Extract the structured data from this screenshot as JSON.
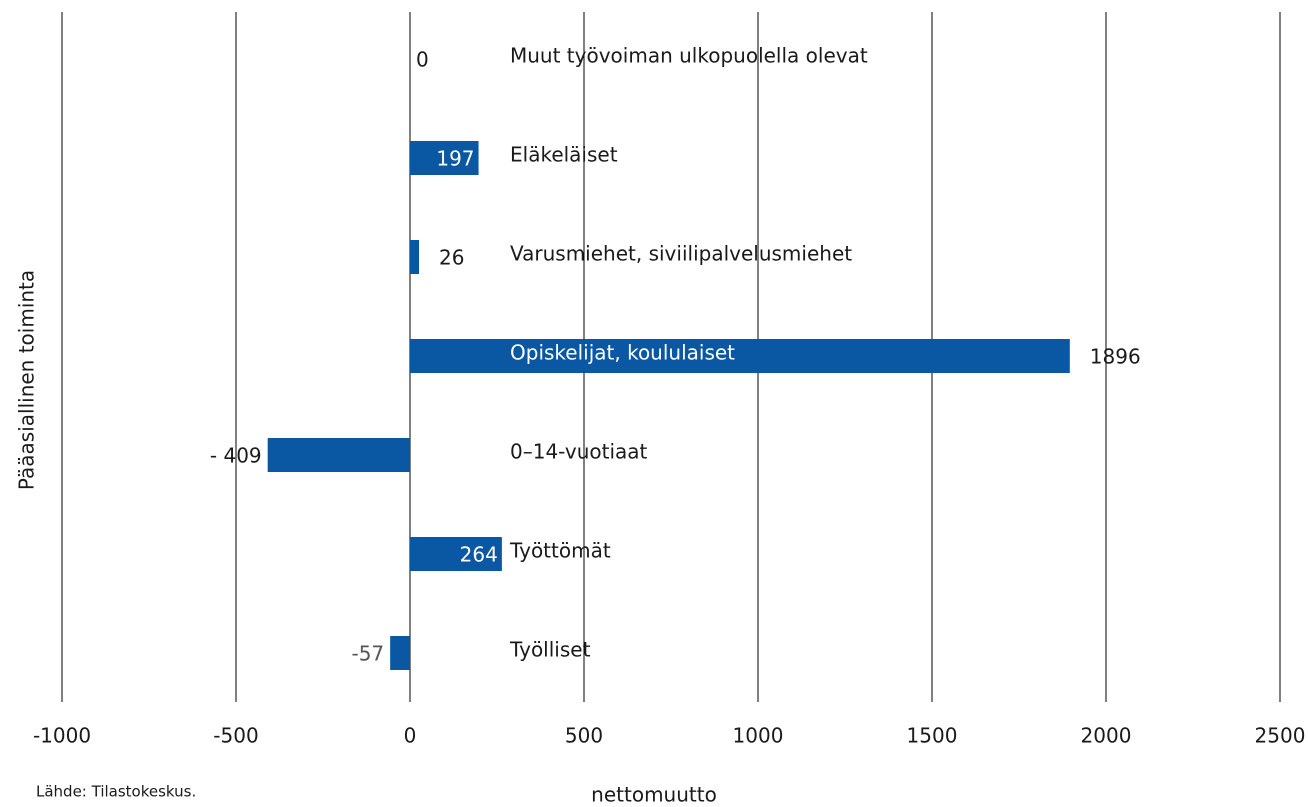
{
  "chart_data": {
    "type": "bar",
    "orientation": "horizontal",
    "categories": [
      "Muut työvoiman ulkopuolella olevat",
      "Eläkeläiset",
      "Varusmiehet, siviilipalvelusmiehet",
      "Opiskelijat, koululaiset",
      "0–14-vuotiaat",
      "Työttömät",
      "Työlliset"
    ],
    "values": [
      0,
      197,
      26,
      1896,
      -409,
      264,
      -57
    ],
    "value_labels": [
      "0",
      "197",
      "26",
      "1896",
      "- 409",
      "264",
      "-57"
    ],
    "color": "#0a57a3",
    "xlim": [
      -1000,
      2500
    ],
    "xticks": [
      -1000,
      -500,
      0,
      500,
      1000,
      1500,
      2000,
      2500
    ],
    "grid": true,
    "xlabel": "nettomuutto",
    "ylabel": "Pääasiallinen toiminta",
    "source": "Lähde: Tilastokeskus."
  }
}
